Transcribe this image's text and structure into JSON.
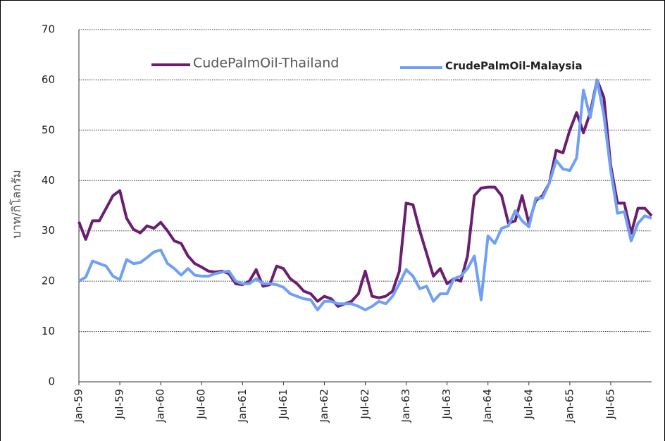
{
  "chart_data": {
    "type": "line",
    "y_label": "บาท/กิโลกรัม",
    "categories": [
      "Jan-59",
      null,
      null,
      null,
      null,
      null,
      "Jul-59",
      null,
      null,
      null,
      null,
      null,
      "Jan-60",
      null,
      null,
      null,
      null,
      null,
      "Jul-60",
      null,
      null,
      null,
      null,
      null,
      "Jan-61",
      null,
      null,
      null,
      null,
      null,
      "Jul-61",
      null,
      null,
      null,
      null,
      null,
      "Jan-62",
      null,
      null,
      null,
      null,
      null,
      "Jul-62",
      null,
      null,
      null,
      null,
      null,
      "Jan-63",
      null,
      null,
      null,
      null,
      null,
      "Jul-63",
      null,
      null,
      null,
      null,
      null,
      "Jan-64",
      null,
      null,
      null,
      null,
      null,
      "Jul-64",
      null,
      null,
      null,
      null,
      null,
      "Jan-65",
      null,
      null,
      null,
      null,
      null,
      "Jul-65",
      null,
      null,
      null,
      null,
      null,
      null
    ],
    "series": [
      {
        "name": "CudePalmOil-Thailand",
        "color": "#6b1e6f",
        "values": [
          31.8,
          28.3,
          32,
          32,
          34.5,
          37,
          38,
          32.5,
          30.3,
          29.6,
          31,
          30.5,
          31.7,
          30,
          28,
          27.5,
          25,
          23.5,
          22.8,
          22,
          21.8,
          22,
          21.5,
          19.5,
          19.3,
          20,
          22.3,
          19,
          19.3,
          23,
          22.5,
          20.5,
          19.5,
          18,
          17.5,
          16,
          17,
          16.5,
          15,
          15.5,
          16,
          17.5,
          22,
          17,
          16.7,
          17,
          18,
          22,
          35.5,
          35.2,
          30,
          25.5,
          21,
          22.5,
          19.5,
          20.5,
          20,
          25,
          37,
          38.5,
          38.7,
          38.7,
          37,
          31.5,
          32,
          37,
          31.5,
          36,
          37,
          39.5,
          46,
          45.5,
          50,
          53.5,
          49.5,
          53.5,
          60,
          56.5,
          43,
          35.5,
          35.5,
          29.5,
          34.5,
          34.5,
          33
        ]
      },
      {
        "name": "CrudePalmOil-Malaysia",
        "color": "#6fa0f5",
        "values": [
          20,
          20.8,
          24,
          23.5,
          23,
          21,
          20.3,
          24.3,
          23.5,
          23.7,
          24.7,
          25.8,
          26.2,
          23.5,
          22.5,
          21.2,
          22.5,
          21.2,
          21,
          21,
          21.5,
          21.8,
          22,
          20,
          19.5,
          19.5,
          20.5,
          19.5,
          19.5,
          19.3,
          18.8,
          17.5,
          17,
          16.5,
          16.3,
          14.3,
          16,
          16,
          15.5,
          15.5,
          15.5,
          15,
          14.3,
          15,
          16,
          15.5,
          17,
          19.5,
          22.3,
          21,
          18.5,
          19,
          16,
          17.5,
          17.5,
          20.5,
          21,
          22.5,
          25,
          16.3,
          29,
          27.5,
          30.5,
          31,
          34,
          32,
          30.8,
          36.5,
          36.5,
          39.5,
          44,
          42.3,
          42,
          44.5,
          58,
          52.5,
          60,
          53,
          42,
          33.5,
          33.8,
          28,
          31.5,
          33,
          32.5
        ]
      }
    ],
    "ylim": [
      0,
      70
    ],
    "yticks": [
      0,
      10,
      20,
      30,
      40,
      50,
      60,
      70
    ],
    "grid": true
  }
}
